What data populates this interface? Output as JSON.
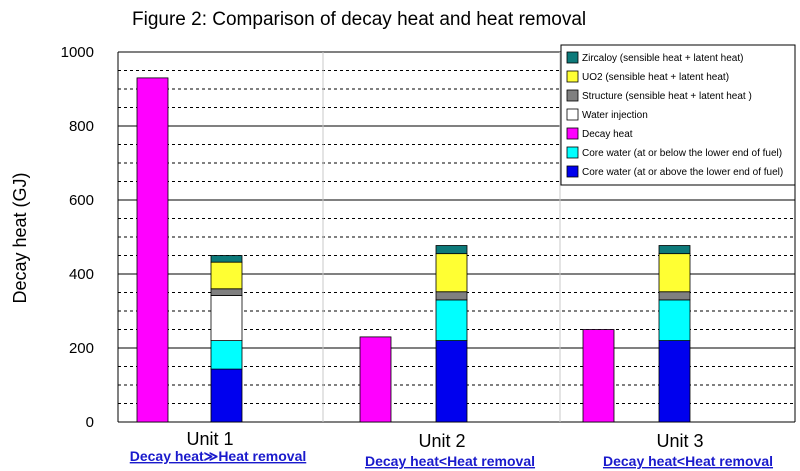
{
  "chart_data": {
    "type": "bar",
    "title": "Figure 2: Comparison of decay heat and heat removal",
    "ylabel": "Decay heat (GJ)",
    "ylim": [
      0,
      1000
    ],
    "yticks": [
      0,
      200,
      400,
      600,
      800,
      1000
    ],
    "grid": true,
    "legend_position": "top-right",
    "units": [
      {
        "label": "Unit 1",
        "comparison": "Decay heat≫Heat removal",
        "decay_heat": 930,
        "heat_removal_stack": [
          {
            "component": "Core water (at or above the lower end of fuel)",
            "value": 143
          },
          {
            "component": "Core water (at or below the lower end of fuel)",
            "value": 77
          },
          {
            "component": "Water injection",
            "value": 122
          },
          {
            "component": "Structure (sensible heat + latent heat )",
            "value": 18
          },
          {
            "component": "UO2 (sensible heat + latent heat)",
            "value": 72
          },
          {
            "component": "Zircaloy (sensible heat + latent heat)",
            "value": 18
          }
        ]
      },
      {
        "label": "Unit 2",
        "comparison": "Decay heat<Heat removal",
        "decay_heat": 230,
        "heat_removal_stack": [
          {
            "component": "Core water (at or above the lower end of fuel)",
            "value": 220
          },
          {
            "component": "Core water (at or below the lower end of fuel)",
            "value": 110
          },
          {
            "component": "Water injection",
            "value": 0
          },
          {
            "component": "Structure (sensible heat + latent heat )",
            "value": 22
          },
          {
            "component": "UO2 (sensible heat + latent heat)",
            "value": 103
          },
          {
            "component": "Zircaloy (sensible heat + latent heat)",
            "value": 22
          }
        ]
      },
      {
        "label": "Unit 3",
        "comparison": "Decay heat<Heat removal",
        "decay_heat": 250,
        "heat_removal_stack": [
          {
            "component": "Core water (at or above the lower end of fuel)",
            "value": 220
          },
          {
            "component": "Core water (at or below the lower end of fuel)",
            "value": 110
          },
          {
            "component": "Water injection",
            "value": 0
          },
          {
            "component": "Structure (sensible heat + latent heat )",
            "value": 22
          },
          {
            "component": "UO2 (sensible heat + latent heat)",
            "value": 103
          },
          {
            "component": "Zircaloy (sensible heat + latent heat)",
            "value": 22
          }
        ]
      }
    ],
    "legend": [
      {
        "label": "Zircaloy (sensible heat + latent heat)",
        "color": "#0d7a7a"
      },
      {
        "label": "UO2 (sensible heat + latent heat)",
        "color": "#ffff33"
      },
      {
        "label": "Structure (sensible heat + latent heat )",
        "color": "#808080"
      },
      {
        "label": "Water injection",
        "color": "#ffffff"
      },
      {
        "label": "Decay heat",
        "color": "#ff00ff"
      },
      {
        "label": "Core water (at or below the lower end of fuel)",
        "color": "#00ffff"
      },
      {
        "label": "Core water (at or above the lower end of fuel)",
        "color": "#0000ee"
      }
    ]
  }
}
